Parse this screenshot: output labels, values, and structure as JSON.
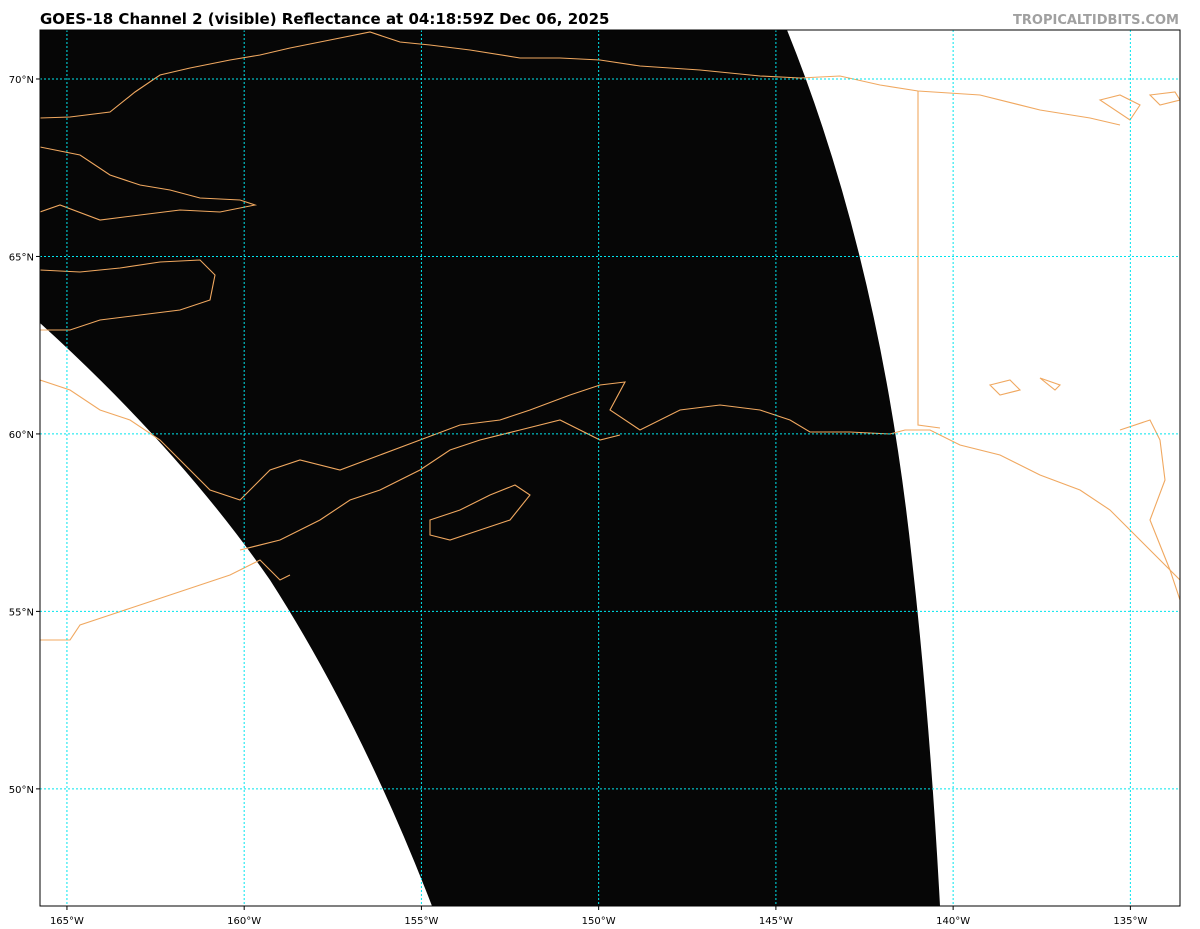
{
  "map": {
    "title": "GOES-18 Channel 2 (visible) Reflectance at 04:18:59Z Dec 06, 2025",
    "credit": "TROPICALTIDBITS.COM",
    "xlim": [
      -165.76,
      -133.6
    ],
    "ylim": [
      46.7,
      71.38
    ],
    "xticks": [
      {
        "value": -165,
        "label": "165°W"
      },
      {
        "value": -160,
        "label": "160°W"
      },
      {
        "value": -155,
        "label": "155°W"
      },
      {
        "value": -150,
        "label": "150°W"
      },
      {
        "value": -145,
        "label": "145°W"
      },
      {
        "value": -140,
        "label": "140°W"
      },
      {
        "value": -135,
        "label": "135°W"
      }
    ],
    "yticks": [
      {
        "value": 50,
        "label": "50°N"
      },
      {
        "value": 55,
        "label": "55°N"
      },
      {
        "value": 60,
        "label": "60°N"
      },
      {
        "value": 65,
        "label": "65°N"
      },
      {
        "value": 70,
        "label": "70°N"
      }
    ],
    "grid": true
  }
}
